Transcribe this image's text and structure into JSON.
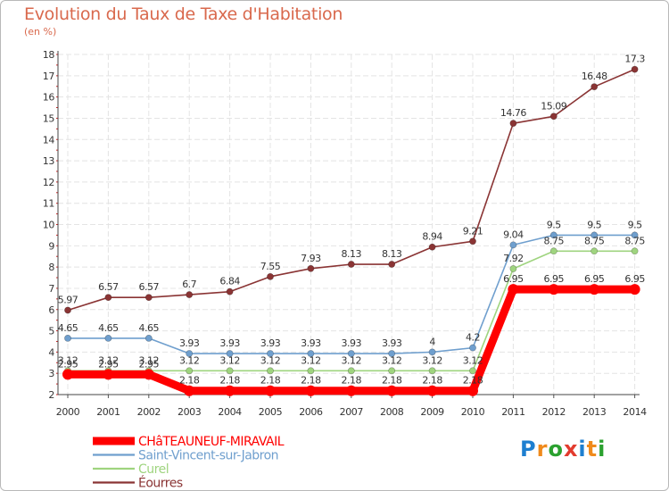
{
  "title": "Evolution du Taux de Taxe d'Habitation",
  "subtitle": "(en %)",
  "logo": {
    "letters": [
      "P",
      "r",
      "o",
      "x",
      "i",
      "t",
      "i"
    ],
    "colors": [
      "#1e7fd0",
      "#f08a1c",
      "#2ba12f",
      "#e23b2e",
      "#1e7fd0",
      "#f08a1c",
      "#2ba12f"
    ]
  },
  "chart_data": {
    "type": "line",
    "x": [
      "2000",
      "2001",
      "2002",
      "2003",
      "2004",
      "2005",
      "2006",
      "2007",
      "2008",
      "2009",
      "2010",
      "2011",
      "2012",
      "2013",
      "2014"
    ],
    "ylim": [
      2,
      18
    ],
    "yticks": [
      2,
      3,
      4,
      5,
      6,
      7,
      8,
      9,
      10,
      11,
      12,
      13,
      14,
      15,
      16,
      17,
      18
    ],
    "grid": true,
    "legend_position": "bottom-left",
    "series": [
      {
        "name": "CHâTEAUNEUF-MIRAVAIL",
        "color": "#ff0000",
        "bold": true,
        "values": [
          2.95,
          2.95,
          2.95,
          2.18,
          2.18,
          2.18,
          2.18,
          2.18,
          2.18,
          2.18,
          2.18,
          6.95,
          6.95,
          6.95,
          6.95
        ],
        "labels": [
          "2.95",
          "2.95",
          "2.95",
          "2.18",
          "2.18",
          "2.18",
          "2.18",
          "2.18",
          "2.18",
          "2.18",
          "2.18",
          "6.95",
          "6.95",
          "6.95",
          "6.95"
        ]
      },
      {
        "name": "Saint-Vincent-sur-Jabron",
        "color": "#6f9fce",
        "bold": false,
        "values": [
          4.65,
          4.65,
          4.65,
          3.93,
          3.93,
          3.93,
          3.93,
          3.93,
          3.93,
          4,
          4.2,
          9.04,
          9.5,
          9.5,
          9.5
        ],
        "labels": [
          "4.65",
          "4.65",
          "4.65",
          "3.93",
          "3.93",
          "3.93",
          "3.93",
          "3.93",
          "3.93",
          "4",
          "4.2",
          "9.04",
          "9.5",
          "9.5",
          "9.5"
        ]
      },
      {
        "name": "Curel",
        "color": "#9fd47f",
        "bold": false,
        "values": [
          3.12,
          3.12,
          3.12,
          3.12,
          3.12,
          3.12,
          3.12,
          3.12,
          3.12,
          3.12,
          3.12,
          7.92,
          8.75,
          8.75,
          8.75
        ],
        "labels": [
          "3.12",
          "3.12",
          "3.12",
          "3.12",
          "3.12",
          "3.12",
          "3.12",
          "3.12",
          "3.12",
          "3.12",
          "3.12",
          "7.92",
          "8.75",
          "8.75",
          "8.75"
        ]
      },
      {
        "name": "Éourres",
        "color": "#8a3434",
        "bold": false,
        "values": [
          5.97,
          6.57,
          6.57,
          6.7,
          6.84,
          7.55,
          7.93,
          8.13,
          8.13,
          8.94,
          9.21,
          14.76,
          15.09,
          16.48,
          17.3
        ],
        "labels": [
          "5.97",
          "6.57",
          "6.57",
          "6.7",
          "6.84",
          "7.55",
          "7.93",
          "8.13",
          "8.13",
          "8.94",
          "9.21",
          "14.76",
          "15.09",
          "16.48",
          "17.3"
        ]
      }
    ]
  }
}
